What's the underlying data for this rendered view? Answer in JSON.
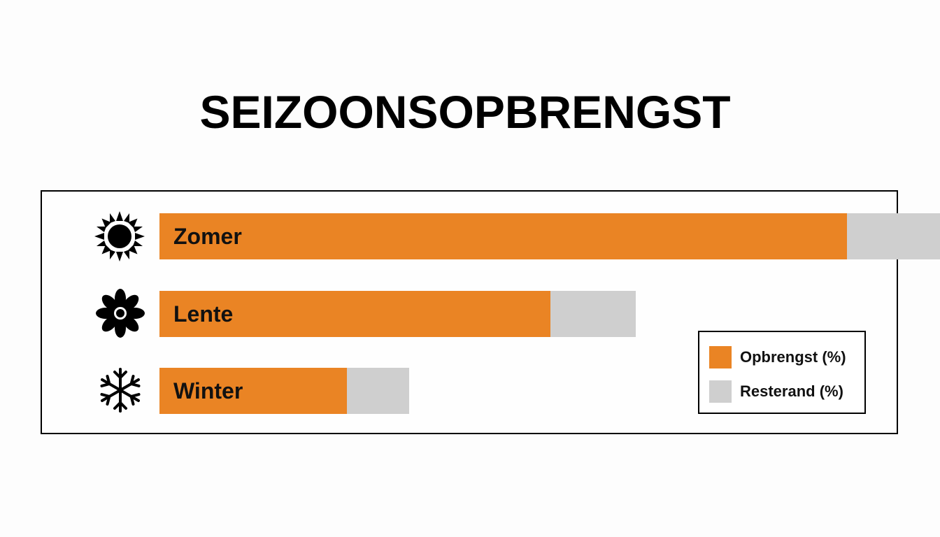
{
  "chart_data": {
    "type": "bar",
    "orientation": "horizontal",
    "stacked": true,
    "title": "SEIZOONSOPBRENGST",
    "categories": [
      "Zomer",
      "Lente",
      "Winter"
    ],
    "category_icons": [
      "sun-icon",
      "flower-icon",
      "snowflake-icon"
    ],
    "series": [
      {
        "name": "Opbrengst (%)",
        "values": [
          88,
          50,
          24
        ],
        "color": "#ea8424"
      },
      {
        "name": "Resterand (%)",
        "values": [
          12,
          11,
          8
        ],
        "color": "#cfcfcf"
      }
    ],
    "xlim": [
      0,
      100
    ],
    "grid": false,
    "axes_visible": false,
    "legend_position": "bottom-right"
  }
}
